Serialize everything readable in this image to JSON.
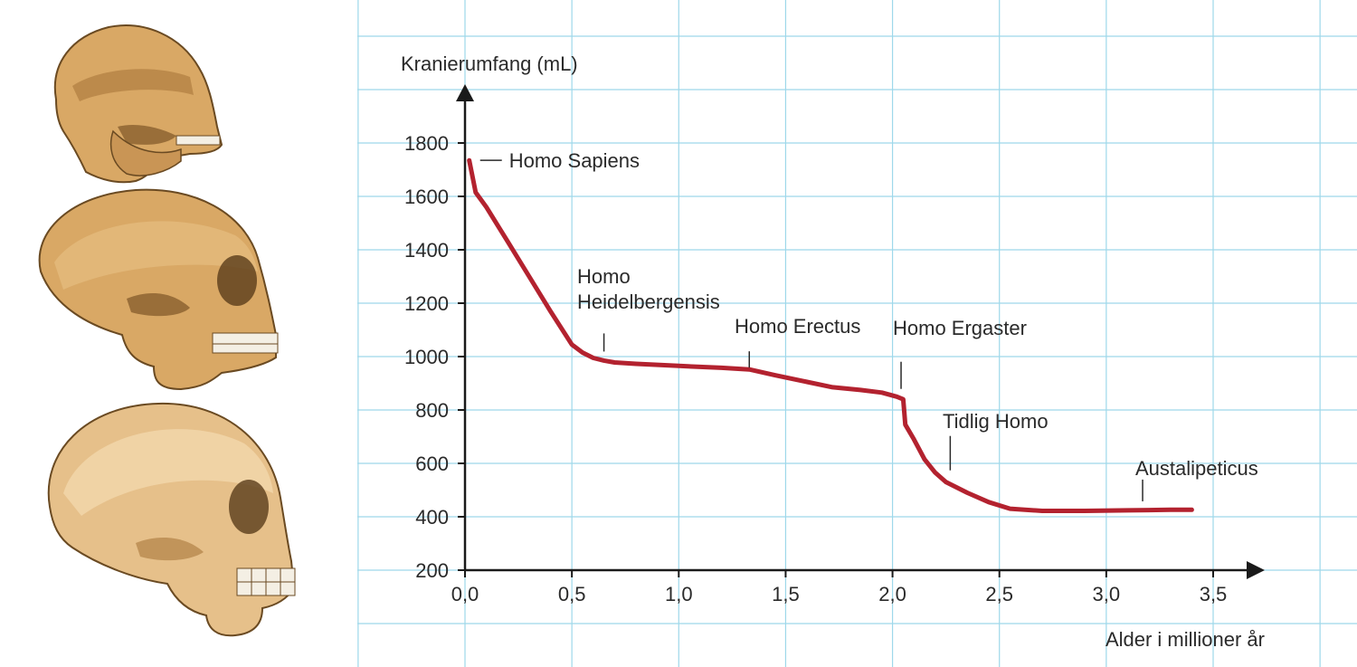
{
  "illustration": {
    "items": [
      {
        "icon": "ape-like-skull-icon"
      },
      {
        "icon": "archaic-human-skull-icon"
      },
      {
        "icon": "modern-human-skull-icon"
      }
    ]
  },
  "colors": {
    "grid": "#9ed8ea",
    "line": "#b3222f",
    "axis": "#1a1a1a",
    "bone": "#d9a865",
    "bone_shadow": "#a9763a"
  },
  "chart_data": {
    "type": "line",
    "title": "",
    "ylabel": "Kranierumfang (mL)",
    "xlabel": "Alder i millioner år",
    "xlim": [
      0,
      3.5
    ],
    "ylim": [
      200,
      1800
    ],
    "xticks": [
      0.0,
      0.5,
      1.0,
      1.5,
      2.0,
      2.5,
      3.0,
      3.5
    ],
    "xtick_labels": [
      "0,0",
      "0,5",
      "1,0",
      "1,5",
      "2,0",
      "2,5",
      "3,0",
      "3,5"
    ],
    "yticks": [
      200,
      400,
      600,
      800,
      1000,
      1200,
      1400,
      1600,
      1800
    ],
    "ytick_labels": [
      "200",
      "400",
      "600",
      "800",
      "1000",
      "1200",
      "1400",
      "1600",
      "1800"
    ],
    "grid": true,
    "series": [
      {
        "x": [
          0.02,
          0.05,
          0.1,
          0.2,
          0.3,
          0.4,
          0.5,
          0.55,
          0.6,
          0.65,
          0.7,
          0.8,
          1.0,
          1.2,
          1.33,
          1.45,
          1.6,
          1.72,
          1.85,
          1.95,
          2.02,
          2.05,
          2.06,
          2.1,
          2.15,
          2.2,
          2.25,
          2.35,
          2.45,
          2.55,
          2.7,
          2.9,
          3.1,
          3.3,
          3.4
        ],
        "y": [
          1735,
          1615,
          1560,
          1430,
          1300,
          1170,
          1045,
          1015,
          995,
          985,
          978,
          973,
          965,
          958,
          952,
          930,
          905,
          885,
          875,
          865,
          850,
          840,
          745,
          690,
          615,
          565,
          530,
          490,
          455,
          430,
          422,
          422,
          424,
          426,
          426
        ]
      }
    ],
    "annotations": [
      {
        "label": "Homo Sapiens",
        "x": 0.02,
        "y": 1735
      },
      {
        "label": "Homo\nHeidelbergensis",
        "x": 0.65,
        "y": 985
      },
      {
        "label": "Homo Erectus",
        "x": 1.33,
        "y": 952
      },
      {
        "label": "Homo Ergaster",
        "x": 2.04,
        "y": 845
      },
      {
        "label": "Tidlig Homo",
        "x": 2.27,
        "y": 540
      },
      {
        "label": "Austalipeticus",
        "x": 3.17,
        "y": 424
      }
    ]
  }
}
